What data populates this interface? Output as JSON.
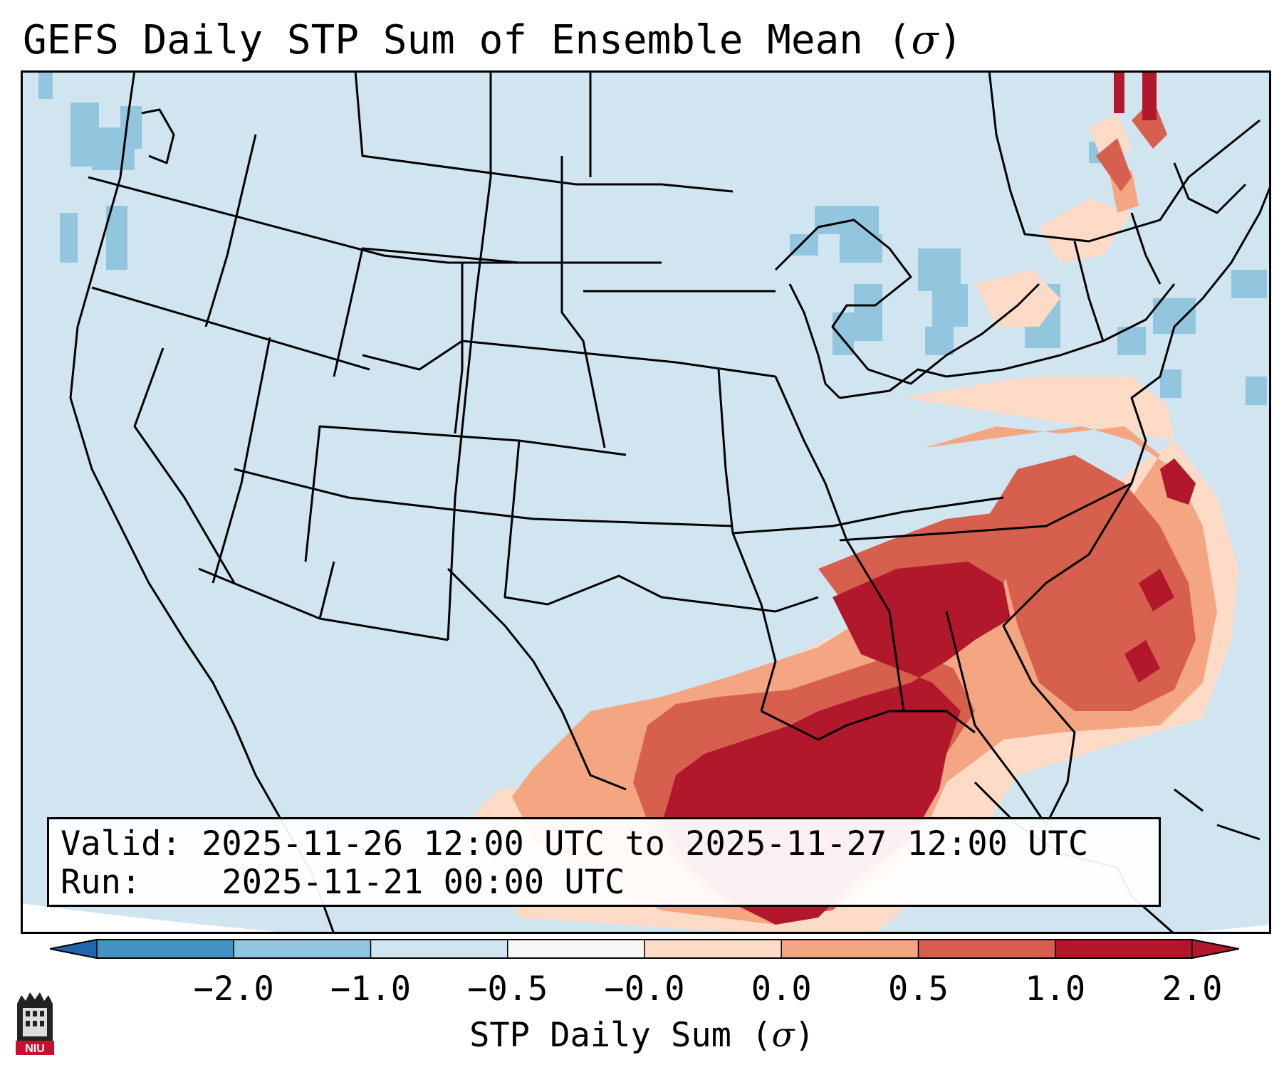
{
  "title": {
    "prefix": "GEFS Daily STP Sum of Ensemble Mean (",
    "symbol": "σ",
    "suffix": ")"
  },
  "info": {
    "valid_label": "Valid:",
    "valid_value": "2025-11-26 12:00 UTC to 2025-11-27 12:00 UTC",
    "run_label": "Run:",
    "run_value": "2025-11-21 00:00 UTC"
  },
  "colorbar": {
    "label_prefix": "STP Daily Sum (",
    "label_symbol": "σ",
    "label_suffix": ")",
    "ticks": [
      "−2.0",
      "−1.0",
      "−0.5",
      "−0.0",
      "0.0",
      "0.5",
      "1.0",
      "2.0"
    ],
    "colors": [
      "#4393c3",
      "#92c5de",
      "#d1e5f0",
      "#f7f7f7",
      "#fddbc7",
      "#f4a582",
      "#d6604d",
      "#b2182b"
    ],
    "under_color": "#2166ac",
    "over_color": "#b2182b"
  },
  "map": {
    "region": "Contiguous United States",
    "background_color": "#d1e5f0",
    "high_values_region": "Gulf Coast and Southeast",
    "low_values_region": "Great Lakes and Pacific Northwest"
  },
  "logo": {
    "text": "NIU"
  }
}
